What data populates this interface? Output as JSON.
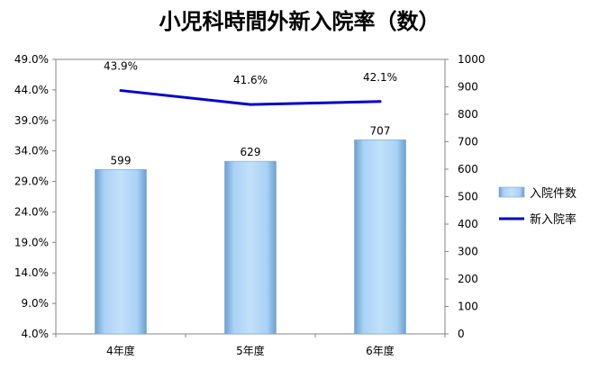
{
  "chart_data": {
    "type": "bar",
    "title": "小児科時間外新入院率（数）",
    "categories": [
      "4年度",
      "5年度",
      "6年度"
    ],
    "series": [
      {
        "name": "入院件数",
        "type": "bar",
        "axis": "right",
        "values": [
          599,
          629,
          707
        ],
        "labels": [
          "599",
          "629",
          "707"
        ],
        "color": "#9DC8F0"
      },
      {
        "name": "新入院率",
        "type": "line",
        "axis": "left",
        "values": [
          43.9,
          41.6,
          42.1
        ],
        "labels": [
          "43.9%",
          "41.6%",
          "42.1%"
        ],
        "color": "#0000CC"
      }
    ],
    "y_left": {
      "ylim": [
        4.0,
        49.0
      ],
      "ticks": [
        "4.0%",
        "9.0%",
        "14.0%",
        "19.0%",
        "24.0%",
        "29.0%",
        "34.0%",
        "39.0%",
        "44.0%",
        "49.0%"
      ]
    },
    "y_right": {
      "ylim": [
        0,
        1000
      ],
      "ticks": [
        "0",
        "100",
        "200",
        "300",
        "400",
        "500",
        "600",
        "700",
        "800",
        "900",
        "1000"
      ]
    },
    "grid": false,
    "legend_position": "right"
  }
}
